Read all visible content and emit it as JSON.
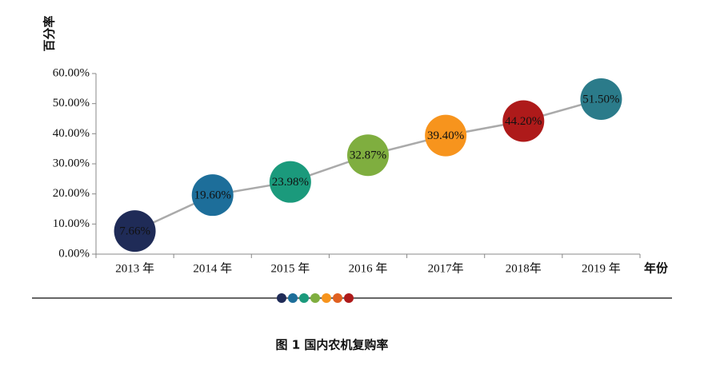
{
  "chart_data": {
    "type": "bubble-line",
    "y_label": "百分率",
    "x_label": "年份",
    "caption": "图 1    国内农机复购率",
    "categories": [
      "2013 年",
      "2014 年",
      "2015 年",
      "2016 年",
      "2017年",
      "2018年",
      "2019 年"
    ],
    "values": [
      7.66,
      19.6,
      23.98,
      32.87,
      39.4,
      44.2,
      51.5
    ],
    "value_labels": [
      "7.66%",
      "19.60%",
      "23.98%",
      "32.87%",
      "39.40%",
      "44.20%",
      "51.50%"
    ],
    "colors": [
      "#1f2b57",
      "#1d6e9a",
      "#1b9a7c",
      "#7fae3f",
      "#f7941d",
      "#ae1a1a",
      "#2b7b8a"
    ],
    "line_color": "#aaaaaa",
    "ylim": [
      0,
      60
    ],
    "yticks": [
      {
        "value": 0,
        "label": "0.00%"
      },
      {
        "value": 10,
        "label": "10.00%"
      },
      {
        "value": 20,
        "label": "20.00%"
      },
      {
        "value": 30,
        "label": "30.00%"
      },
      {
        "value": 40,
        "label": "40.00%"
      },
      {
        "value": 50,
        "label": "50.00%"
      },
      {
        "value": 60,
        "label": "60.00%"
      }
    ]
  }
}
